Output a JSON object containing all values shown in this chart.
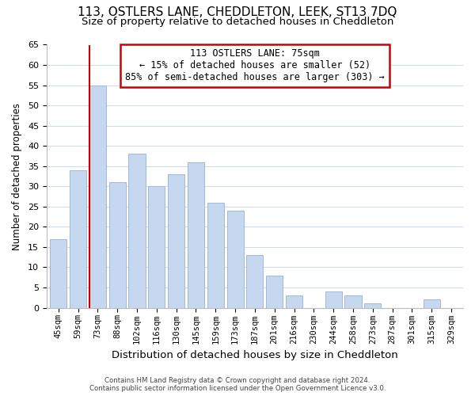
{
  "title": "113, OSTLERS LANE, CHEDDLETON, LEEK, ST13 7DQ",
  "subtitle": "Size of property relative to detached houses in Cheddleton",
  "xlabel": "Distribution of detached houses by size in Cheddleton",
  "ylabel": "Number of detached properties",
  "bar_labels": [
    "45sqm",
    "59sqm",
    "73sqm",
    "88sqm",
    "102sqm",
    "116sqm",
    "130sqm",
    "145sqm",
    "159sqm",
    "173sqm",
    "187sqm",
    "201sqm",
    "216sqm",
    "230sqm",
    "244sqm",
    "258sqm",
    "273sqm",
    "287sqm",
    "301sqm",
    "315sqm",
    "329sqm"
  ],
  "bar_values": [
    17,
    34,
    55,
    31,
    38,
    30,
    33,
    36,
    26,
    24,
    13,
    8,
    3,
    0,
    4,
    3,
    1,
    0,
    0,
    2,
    0
  ],
  "bar_color": "#c5d8f0",
  "bar_edge_color": "#a0b8d8",
  "highlight_bar_index": 2,
  "highlight_line_color": "#cc0000",
  "ylim": [
    0,
    65
  ],
  "yticks": [
    0,
    5,
    10,
    15,
    20,
    25,
    30,
    35,
    40,
    45,
    50,
    55,
    60,
    65
  ],
  "annotation_title": "113 OSTLERS LANE: 75sqm",
  "annotation_line1": "← 15% of detached houses are smaller (52)",
  "annotation_line2": "85% of semi-detached houses are larger (303) →",
  "footer_line1": "Contains HM Land Registry data © Crown copyright and database right 2024.",
  "footer_line2": "Contains public sector information licensed under the Open Government Licence v3.0.",
  "background_color": "#ffffff",
  "grid_color": "#d0dded"
}
